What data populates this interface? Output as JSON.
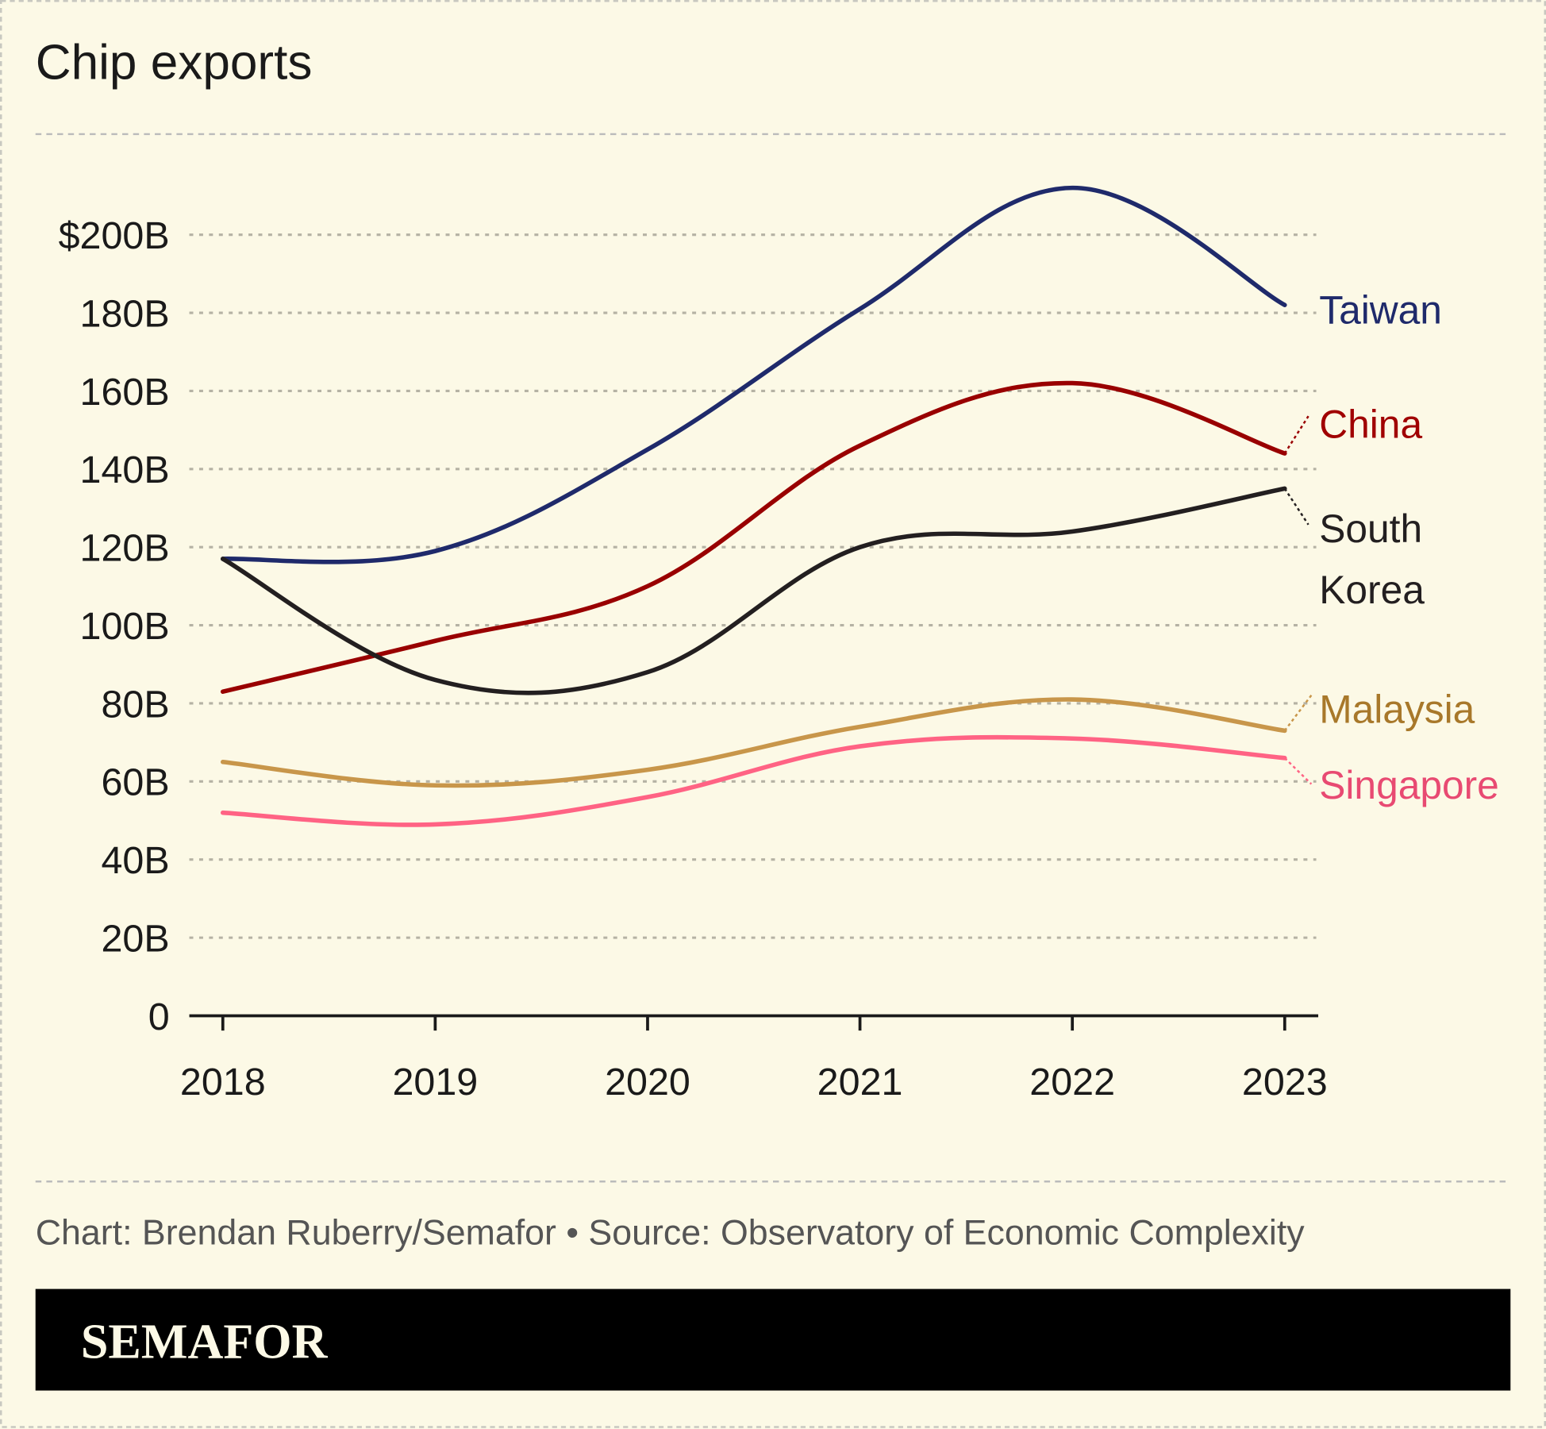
{
  "chart_data": {
    "type": "line",
    "title": "Chip exports",
    "xlabel": "",
    "ylabel": "",
    "categories": [
      "2018",
      "2019",
      "2020",
      "2021",
      "2022",
      "2023"
    ],
    "ylim": [
      0,
      200
    ],
    "y_ticks": [
      0,
      20,
      40,
      60,
      80,
      100,
      120,
      140,
      160,
      180,
      200
    ],
    "y_tick_labels": [
      "0",
      "20B",
      "40B",
      "60B",
      "80B",
      "100B",
      "120B",
      "140B",
      "160B",
      "180B",
      "$200B"
    ],
    "grid": true,
    "legend": "direct labels at line ends (right)",
    "series": [
      {
        "name": "Taiwan",
        "label_lines": [
          "Taiwan"
        ],
        "color": "#1f2a6b",
        "label_color": "#1f2a6b",
        "values": [
          117,
          119,
          145,
          181,
          212,
          182
        ]
      },
      {
        "name": "China",
        "label_lines": [
          "China"
        ],
        "color": "#990000",
        "label_color": "#a00000",
        "values": [
          83,
          96,
          110,
          146,
          162,
          144
        ]
      },
      {
        "name": "South Korea",
        "label_lines": [
          "South",
          "Korea"
        ],
        "color": "#231f20",
        "label_color": "#231f20",
        "values": [
          117,
          86,
          88,
          120,
          124,
          135
        ]
      },
      {
        "name": "Malaysia",
        "label_lines": [
          "Malaysia"
        ],
        "color": "#c8964a",
        "label_color": "#a8782a",
        "values": [
          65,
          59,
          63,
          74,
          81,
          73
        ]
      },
      {
        "name": "Singapore",
        "label_lines": [
          "Singapore"
        ],
        "color": "#ff6384",
        "label_color": "#e84a72",
        "values": [
          52,
          49,
          56,
          69,
          71,
          66
        ]
      }
    ]
  },
  "footer": {
    "credit": "Chart: Brendan Ruberry/Semafor • Source: Observatory of Economic Complexity",
    "brand": "SEMAFOR"
  },
  "colors": {
    "background": "#fcf9e6",
    "brand_bar": "#000000"
  }
}
